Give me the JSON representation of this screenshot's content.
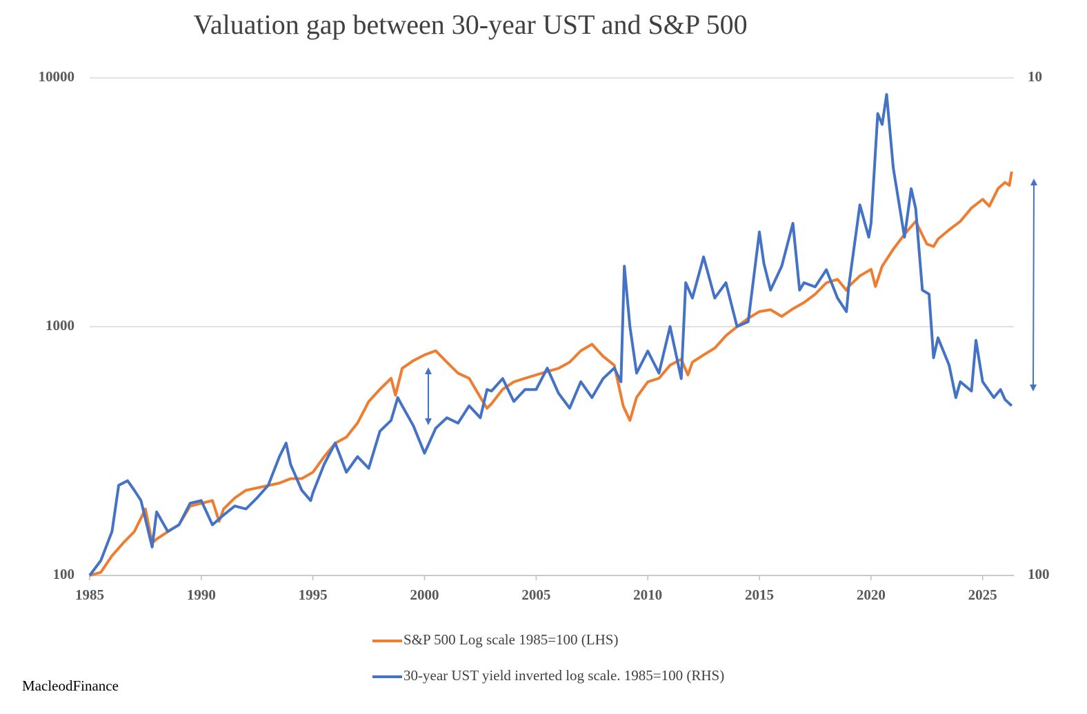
{
  "chart_data": {
    "type": "line",
    "title": "Valuation gap between 30-year UST and S&P 500",
    "source": "MacleodFinance",
    "log_scale": true,
    "grid": true,
    "legend": "bottom",
    "xlim": [
      1985,
      2026.4
    ],
    "xticks": [
      1985,
      1990,
      1995,
      2000,
      2005,
      2010,
      2015,
      2020,
      2025
    ],
    "ylim": [
      100,
      10000
    ],
    "yticks": [
      100,
      1000,
      10000
    ],
    "y2lim": [
      100,
      10
    ],
    "y2ticks": [
      100,
      10
    ],
    "series": [
      {
        "name": "S&P 500 Log scale 1985=100 (LHS)",
        "color": "#ed7d31",
        "x": [
          1985.0,
          1985.5,
          1986,
          1986.5,
          1987,
          1987.5,
          1987.8,
          1988,
          1988.5,
          1989,
          1989.5,
          1990,
          1990.5,
          1990.8,
          1991,
          1991.5,
          1992,
          1992.5,
          1993,
          1993.5,
          1994,
          1994.5,
          1995,
          1995.5,
          1996,
          1996.5,
          1997,
          1997.5,
          1998,
          1998.5,
          1998.7,
          1999,
          1999.5,
          2000,
          2000.5,
          2001,
          2001.5,
          2002,
          2002.5,
          2002.8,
          2003,
          2003.5,
          2004,
          2004.5,
          2005,
          2005.5,
          2006,
          2006.5,
          2007,
          2007.5,
          2008,
          2008.5,
          2008.9,
          2009.2,
          2009.5,
          2010,
          2010.5,
          2011,
          2011.5,
          2011.8,
          2012,
          2012.5,
          2013,
          2013.5,
          2014,
          2014.5,
          2015,
          2015.5,
          2016,
          2016.5,
          2017,
          2017.5,
          2018,
          2018.5,
          2018.9,
          2019,
          2019.5,
          2020,
          2020.2,
          2020.5,
          2021,
          2021.5,
          2022,
          2022.5,
          2022.8,
          2023,
          2023.5,
          2024,
          2024.5,
          2025,
          2025.3,
          2025.7,
          2026,
          2026.2,
          2026.3
        ],
        "values": [
          100,
          103,
          120,
          135,
          150,
          185,
          135,
          140,
          150,
          160,
          190,
          195,
          200,
          165,
          185,
          205,
          220,
          225,
          230,
          235,
          245,
          245,
          260,
          300,
          340,
          360,
          410,
          500,
          560,
          620,
          530,
          680,
          730,
          770,
          800,
          720,
          650,
          620,
          520,
          470,
          490,
          560,
          600,
          620,
          640,
          660,
          680,
          720,
          800,
          850,
          760,
          700,
          480,
          420,
          520,
          600,
          620,
          700,
          740,
          640,
          720,
          770,
          820,
          920,
          1000,
          1080,
          1150,
          1170,
          1100,
          1180,
          1250,
          1350,
          1500,
          1550,
          1400,
          1450,
          1600,
          1700,
          1450,
          1750,
          2050,
          2350,
          2650,
          2150,
          2100,
          2250,
          2450,
          2650,
          3000,
          3250,
          3050,
          3600,
          3800,
          3700,
          4200
        ]
      },
      {
        "name": "30-year UST yield inverted log scale. 1985=100 (RHS)",
        "color": "#4472c4",
        "axis": "y2",
        "x": [
          1985,
          1985.5,
          1986,
          1986.3,
          1986.7,
          1987,
          1987.3,
          1987.8,
          1988,
          1988.5,
          1989,
          1989.5,
          1990,
          1990.5,
          1991,
          1991.5,
          1992,
          1992.5,
          1993,
          1993.5,
          1993.8,
          1994,
          1994.5,
          1994.9,
          1995,
          1995.5,
          1996,
          1996.5,
          1997,
          1997.5,
          1998,
          1998.5,
          1998.8,
          1999,
          1999.5,
          2000,
          2000.5,
          2001,
          2001.5,
          2002,
          2002.5,
          2002.8,
          2003,
          2003.5,
          2004,
          2004.5,
          2005,
          2005.5,
          2006,
          2006.5,
          2007,
          2007.5,
          2008,
          2008.5,
          2008.8,
          2008.95,
          2009.2,
          2009.5,
          2010,
          2010.5,
          2011,
          2011.5,
          2011.7,
          2012,
          2012.5,
          2013,
          2013.5,
          2014,
          2014.5,
          2015,
          2015.2,
          2015.5,
          2016,
          2016.5,
          2016.8,
          2017,
          2017.5,
          2018,
          2018.5,
          2018.9,
          2019,
          2019.5,
          2019.9,
          2020,
          2020.3,
          2020.5,
          2020.7,
          2021,
          2021.5,
          2021.8,
          2022,
          2022.3,
          2022.6,
          2022.8,
          2023,
          2023.5,
          2023.8,
          2024,
          2024.5,
          2024.7,
          2025,
          2025.5,
          2025.8,
          2026,
          2026.3
        ],
        "values": [
          100,
          93.3,
          81.6,
          65.9,
          64.5,
          67.4,
          70.7,
          87.7,
          74.5,
          81.6,
          79.1,
          71.6,
          70.7,
          79.1,
          75.6,
          72.5,
          73.5,
          69.8,
          65.9,
          57.7,
          54.2,
          59.8,
          67.4,
          70.7,
          68.2,
          59.8,
          54.2,
          62.0,
          57.7,
          60.9,
          51.3,
          48.8,
          43.9,
          45.6,
          50.0,
          56.8,
          50.6,
          48.2,
          49.4,
          45.6,
          48.2,
          42.3,
          42.6,
          40.2,
          44.7,
          42.3,
          42.3,
          38.3,
          43.0,
          46.1,
          40.8,
          43.9,
          40.2,
          38.3,
          40.8,
          23.9,
          31.6,
          39.2,
          35.4,
          39.2,
          31.6,
          40.2,
          25.8,
          27.7,
          22.9,
          27.7,
          25.8,
          31.6,
          30.9,
          20.4,
          23.6,
          26.7,
          23.9,
          19.6,
          26.7,
          25.8,
          26.3,
          24.3,
          27.7,
          29.5,
          26.3,
          18.0,
          20.9,
          19.6,
          11.8,
          12.4,
          10.8,
          15.2,
          20.9,
          16.7,
          18.3,
          26.7,
          27.2,
          36.5,
          33.3,
          37.8,
          43.9,
          40.8,
          42.6,
          33.7,
          40.8,
          43.9,
          42.3,
          44.3,
          45.6
        ]
      }
    ]
  }
}
